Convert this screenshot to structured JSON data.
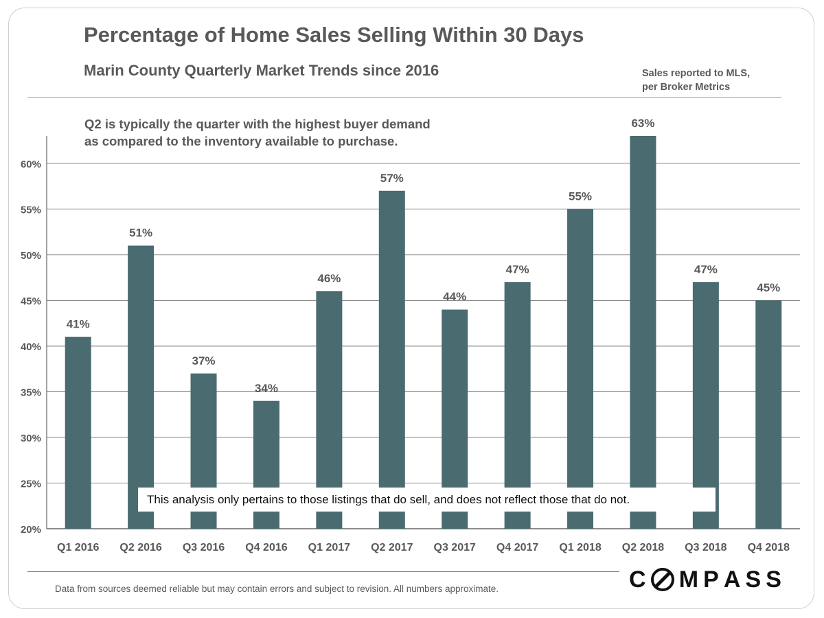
{
  "header": {
    "title": "Percentage of Home Sales Selling Within 30 Days",
    "subtitle": "Marin County Quarterly Market Trends since 2016",
    "source_note": "Sales reported to MLS,\nper Broker Metrics"
  },
  "annotation": "Q2 is typically  the quarter with the highest  buyer demand\nas compared  to the inventory  available  to purchase.",
  "callout": "This analysis only pertains to those listings that do sell, and does not reflect those that do not.",
  "footer": {
    "disclaimer": "Data from sources deemed reliable but may contain errors and subject to revision.  All numbers approximate.",
    "logo_text": "COMPASS"
  },
  "colors": {
    "bar": "#4a6b70",
    "gridline": "#888888",
    "text": "#595959"
  },
  "chart_data": {
    "type": "bar",
    "categories": [
      "Q1 2016",
      "Q2 2016",
      "Q3 2016",
      "Q4 2016",
      "Q1 2017",
      "Q2 2017",
      "Q3 2017",
      "Q4 2017",
      "Q1 2018",
      "Q2 2018",
      "Q3 2018",
      "Q4 2018"
    ],
    "values": [
      41,
      51,
      37,
      34,
      46,
      57,
      44,
      47,
      55,
      63,
      47,
      45
    ],
    "data_labels": [
      "41%",
      "51%",
      "37%",
      "34%",
      "46%",
      "57%",
      "44%",
      "47%",
      "55%",
      "63%",
      "47%",
      "45%"
    ],
    "yticks": [
      20,
      25,
      30,
      35,
      40,
      45,
      50,
      55,
      60
    ],
    "ytick_labels": [
      "20%",
      "25%",
      "30%",
      "35%",
      "40%",
      "45%",
      "50%",
      "55%",
      "60%"
    ],
    "ylim": [
      20,
      63
    ],
    "grid": true,
    "title": "Percentage of Home Sales Selling Within 30 Days",
    "xlabel": "",
    "ylabel": ""
  }
}
